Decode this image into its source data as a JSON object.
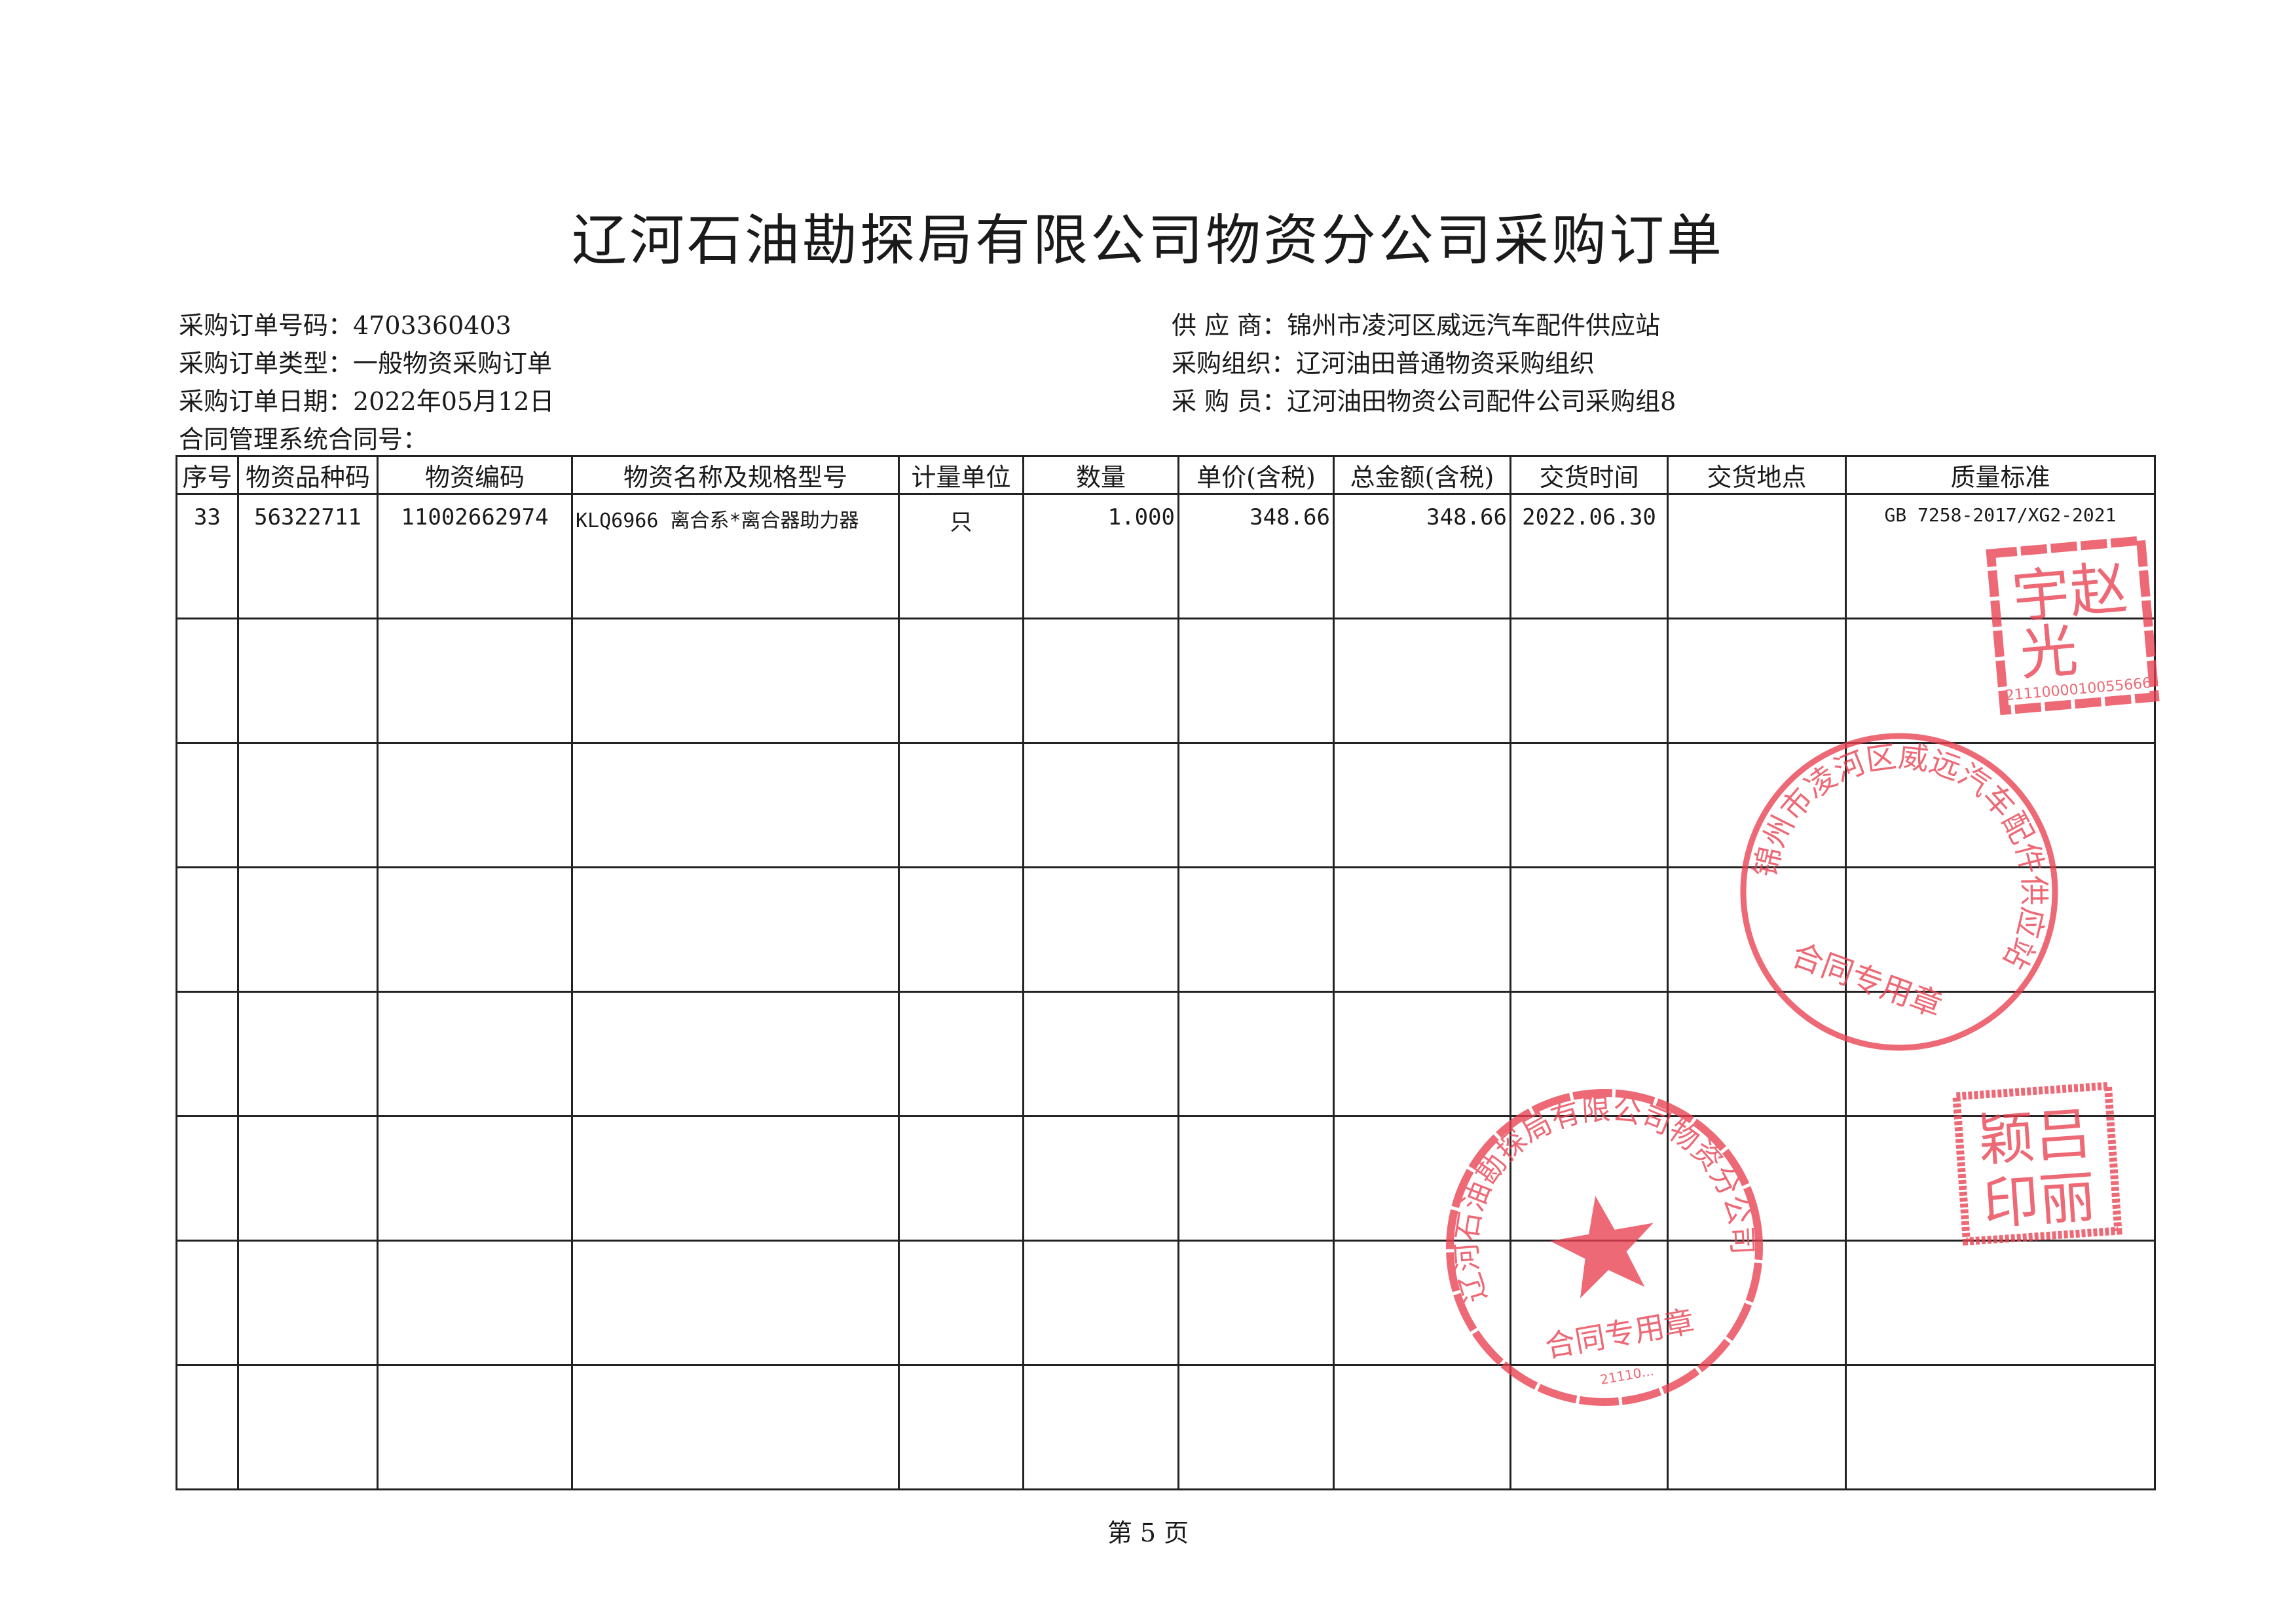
{
  "title": "辽河石油勘探局有限公司物资分公司采购订单",
  "info_left": [
    {
      "label": "采购订单号码：",
      "value": "4703360403"
    },
    {
      "label": "采购订单类型：",
      "value": "一般物资采购订单"
    },
    {
      "label": "采购订单日期：",
      "value": "2022年05月12日"
    },
    {
      "label": "合同管理系统合同号：",
      "value": ""
    }
  ],
  "info_right": [
    {
      "label": "供 应 商：",
      "value": "锦州市凌河区威远汽车配件供应站"
    },
    {
      "label": "采购组织：",
      "value": "辽河油田普通物资采购组织"
    },
    {
      "label": "采 购 员：",
      "value": "辽河油田物资公司配件公司采购组8"
    }
  ],
  "table": {
    "headers": [
      "序号",
      "物资品种码",
      "物资编码",
      "物资名称及规格型号",
      "计量单位",
      "数量",
      "单价(含税)",
      "总金额(含税)",
      "交货时间",
      "交货地点",
      "质量标准"
    ],
    "rows": [
      [
        "33",
        "56322711",
        "11002662974",
        "KLQ6966 离合系*离合器助力器",
        "只",
        "1.000",
        "348.66",
        "348.66",
        "2022.06.30",
        "",
        "GB 7258-2017/XG2-2021"
      ]
    ]
  },
  "footer": {
    "page": "第 5 页"
  },
  "stamps": {
    "personal_seal_1": {
      "text": "赵光宇",
      "number": "2111000010055666"
    },
    "supplier_seal": {
      "text": "锦州市凌河区威远汽车配件供应站",
      "subtext": "合同专用章"
    },
    "buyer_seal": {
      "text": "辽河石油勘探局有限公司物资分公司",
      "subtext": "合同专用章",
      "number": "21110..."
    },
    "personal_seal_2": {
      "text": "吕颖丽印"
    },
    "color": "#e8404f"
  }
}
